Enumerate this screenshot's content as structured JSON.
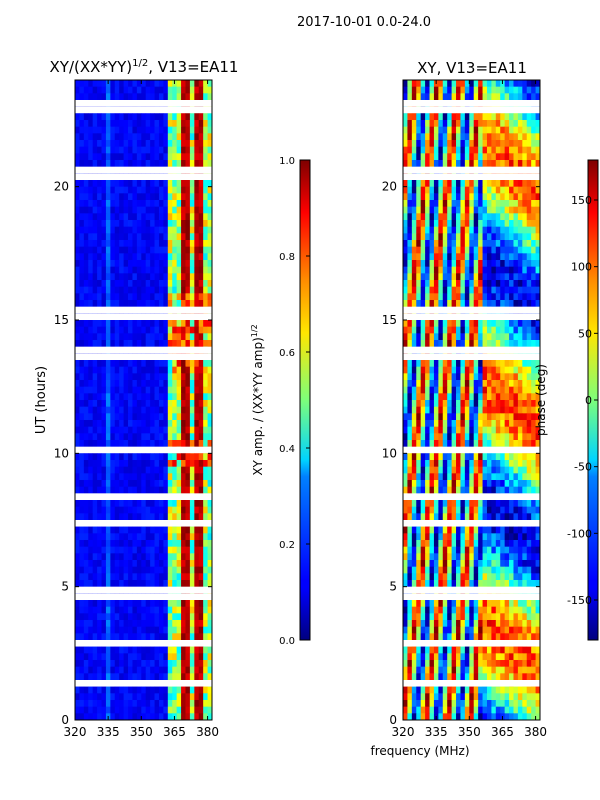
{
  "suptitle": "2017-10-01 0.0-24.0",
  "chart_data": [
    {
      "type": "heatmap",
      "title": "XY/(XX*YY)^(1/2), V13=EA11",
      "xlabel": "",
      "ylabel": "UT (hours)",
      "xlim": [
        320,
        382
      ],
      "ylim": [
        0,
        24
      ],
      "xticks": [
        "320",
        "335",
        "350",
        "365",
        "380"
      ],
      "yticks": [
        "0",
        "5",
        "10",
        "15",
        "20"
      ],
      "colormap": "jet",
      "colorbar": {
        "label": "XY amp. / (XX*YY amp)^(1/2)",
        "range": [
          0.0,
          1.0
        ],
        "ticks": [
          "0.0",
          "0.2",
          "0.4",
          "0.6",
          "0.8",
          "1.0"
        ]
      },
      "description_of_values": "Mostly low amplitude (~0.05-0.15) below 362 MHz; bright band 362-380 MHz (~0.4-0.8)"
    },
    {
      "type": "heatmap",
      "title": "XY, V13=EA11",
      "xlabel": "frequency (MHz)",
      "ylabel": "",
      "xlim": [
        320,
        382
      ],
      "ylim": [
        0,
        24
      ],
      "xticks": [
        "320",
        "335",
        "350",
        "365",
        "380"
      ],
      "yticks": [
        "0",
        "5",
        "10",
        "15",
        "20"
      ],
      "colormap": "jet",
      "colorbar": {
        "label": "phase (deg)",
        "range": [
          -180,
          180
        ],
        "ticks": [
          "-150",
          "-100",
          "-50",
          "0",
          "50",
          "100",
          "150"
        ]
      },
      "description_of_values": "Phase fringes wrapping rapidly across frequency between 320-355 MHz; smoother phases above 355 MHz"
    }
  ],
  "colors": {
    "jet_low": "#00007f",
    "jet_mid": "#7fff7f",
    "jet_high": "#7f0000"
  }
}
